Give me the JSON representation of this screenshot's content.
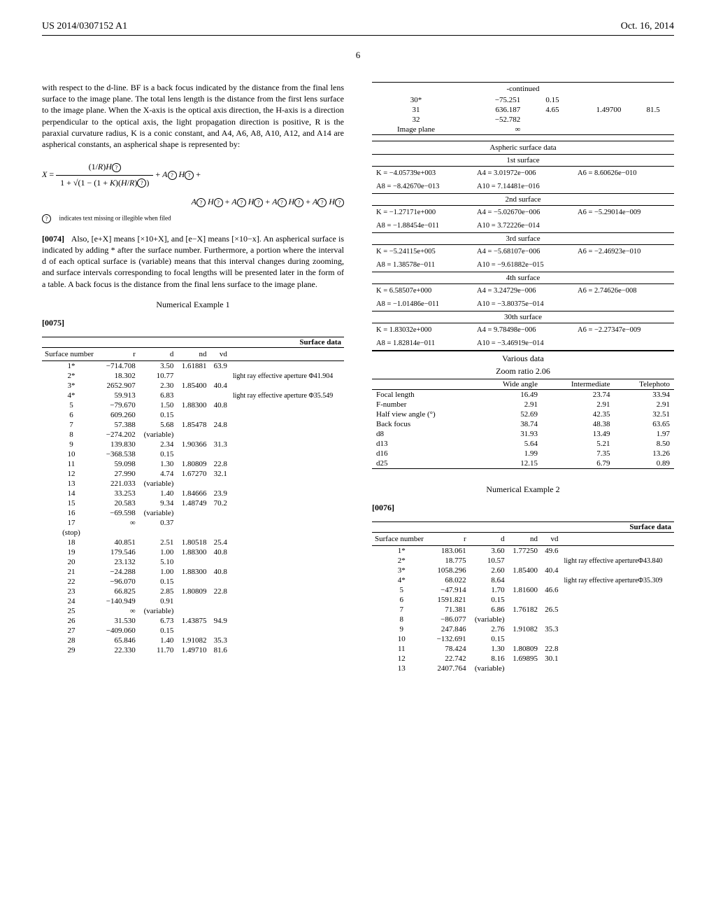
{
  "header": {
    "pub_no": "US 2014/0307152 A1",
    "pub_date": "Oct. 16, 2014"
  },
  "page_number": "6",
  "para1": "with respect to the d-line. BF is a back focus indicated by the distance from the final lens surface to the image plane. The total lens length is the distance from the first lens surface to the image plane. When the X-axis is the optical axis direction, the H-axis is a direction perpendicular to the optical axis, the light propagation direction is positive, R is the paraxial curvature radius, K is a conic constant, and A4, A6, A8, A10, A12, and A14 are aspherical constants, an aspherical shape is represented by:",
  "formula_main": "X = (1/R)H⃝ / (1 + √(1 − (1 + K)(H/R)⃝)) + A⃝ H⃝ +",
  "formula_cont": "A⃝ H⃝ + A⃝ H⃝ + A⃝ H⃝ + A⃝ H⃝",
  "formula_note": "⃝ indicates text missing or illegible when filed",
  "para2_num": "[0074]",
  "para2": "Also, [e+X] means [×10+X], and [e−X] means [×10−x]. An aspherical surface is indicated by adding * after the surface number. Furthermore, a portion where the interval d of each optical surface is (variable) means that this interval changes during zooming, and surface intervals corresponding to focal lengths will be presented later in the form of a table. A back focus is the distance from the final lens surface to the image plane.",
  "example1_title": "Numerical Example 1",
  "para3_num": "[0075]",
  "surface_title": "Surface data",
  "surface_header": [
    "Surface number",
    "r",
    "d",
    "nd",
    "vd",
    ""
  ],
  "surface_rows1": [
    [
      "1*",
      "−714.708",
      "3.50",
      "1.61881",
      "63.9",
      ""
    ],
    [
      "2*",
      "18.302",
      "10.77",
      "",
      "",
      "light ray effective aperture Φ41.904"
    ],
    [
      "3*",
      "2652.907",
      "2.30",
      "1.85400",
      "40.4",
      ""
    ],
    [
      "4*",
      "59.913",
      "6.83",
      "",
      "",
      "light ray effective aperture Φ35.549"
    ],
    [
      "5",
      "−79.670",
      "1.50",
      "1.88300",
      "40.8",
      ""
    ],
    [
      "6",
      "609.260",
      "0.15",
      "",
      "",
      ""
    ],
    [
      "7",
      "57.388",
      "5.68",
      "1.85478",
      "24.8",
      ""
    ],
    [
      "8",
      "−274.202",
      "(variable)",
      "",
      "",
      ""
    ],
    [
      "9",
      "139.830",
      "2.34",
      "1.90366",
      "31.3",
      ""
    ],
    [
      "10",
      "−368.538",
      "0.15",
      "",
      "",
      ""
    ],
    [
      "11",
      "59.098",
      "1.30",
      "1.80809",
      "22.8",
      ""
    ],
    [
      "12",
      "27.990",
      "4.74",
      "1.67270",
      "32.1",
      ""
    ],
    [
      "13",
      "221.033",
      "(variable)",
      "",
      "",
      ""
    ],
    [
      "14",
      "33.253",
      "1.40",
      "1.84666",
      "23.9",
      ""
    ],
    [
      "15",
      "20.583",
      "9.34",
      "1.48749",
      "70.2",
      ""
    ],
    [
      "16",
      "−69.598",
      "(variable)",
      "",
      "",
      ""
    ],
    [
      "17",
      "∞",
      "0.37",
      "",
      "",
      ""
    ],
    [
      "(stop)",
      "",
      "",
      "",
      "",
      ""
    ],
    [
      "18",
      "40.851",
      "2.51",
      "1.80518",
      "25.4",
      ""
    ],
    [
      "19",
      "179.546",
      "1.00",
      "1.88300",
      "40.8",
      ""
    ],
    [
      "20",
      "23.132",
      "5.10",
      "",
      "",
      ""
    ],
    [
      "21",
      "−24.288",
      "1.00",
      "1.88300",
      "40.8",
      ""
    ],
    [
      "22",
      "−96.070",
      "0.15",
      "",
      "",
      ""
    ],
    [
      "23",
      "66.825",
      "2.85",
      "1.80809",
      "22.8",
      ""
    ],
    [
      "24",
      "−140.949",
      "0.91",
      "",
      "",
      ""
    ],
    [
      "25",
      "∞",
      "(variable)",
      "",
      "",
      ""
    ],
    [
      "26",
      "31.530",
      "6.73",
      "1.43875",
      "94.9",
      ""
    ],
    [
      "27",
      "−409.060",
      "0.15",
      "",
      "",
      ""
    ],
    [
      "28",
      "65.846",
      "1.40",
      "1.91082",
      "35.3",
      ""
    ],
    [
      "29",
      "22.330",
      "11.70",
      "1.49710",
      "81.6",
      ""
    ]
  ],
  "continued_label": "-continued",
  "surface_rows_cont": [
    [
      "30*",
      "−75.251",
      "0.15",
      "",
      "",
      ""
    ],
    [
      "31",
      "636.187",
      "4.65",
      "1.49700",
      "81.5",
      ""
    ],
    [
      "32",
      "−52.782",
      "",
      "",
      "",
      ""
    ],
    [
      "Image plane",
      "∞",
      "",
      "",
      "",
      ""
    ]
  ],
  "aspheric_title": "Aspheric surface data",
  "aspheric_surfaces": [
    {
      "name": "1st surface",
      "rows": [
        [
          "K = −4.05739e+003",
          "A4 = 3.01972e−006",
          "A6 = 8.60626e−010"
        ],
        [
          "A8 = −8.42670e−013",
          "A10 = 7.14481e−016",
          ""
        ]
      ]
    },
    {
      "name": "2nd surface",
      "rows": [
        [
          "K = −1.27171e+000",
          "A4 = −5.02670e−006",
          "A6 = −5.29014e−009"
        ],
        [
          "A8 = −1.88454e−011",
          "A10 = 3.72226e−014",
          ""
        ]
      ]
    },
    {
      "name": "3rd surface",
      "rows": [
        [
          "K = −5.24115e+005",
          "A4 = −5.68107e−006",
          "A6 = −2.46923e−010"
        ],
        [
          "A8 = 1.38578e−011",
          "A10 = −9.61882e−015",
          ""
        ]
      ]
    },
    {
      "name": "4th surface",
      "rows": [
        [
          "K = 6.58507e+000",
          "A4 = 3.24729e−006",
          "A6 = 2.74626e−008"
        ],
        [
          "A8 = −1.01486e−011",
          "A10 = −3.80375e−014",
          ""
        ]
      ]
    },
    {
      "name": "30th surface",
      "rows": [
        [
          "K = 1.83032e+000",
          "A4 = 9.78498e−006",
          "A6 = −2.27347e−009"
        ],
        [
          "A8 = 1.82814e−011",
          "A10 = −3.46919e−014",
          ""
        ]
      ]
    }
  ],
  "various_title": "Various data",
  "various_sub": "Zoom ratio 2.06",
  "various_header": [
    "",
    "Wide angle",
    "Intermediate",
    "Telephoto"
  ],
  "various_rows": [
    [
      "Focal length",
      "16.49",
      "23.74",
      "33.94"
    ],
    [
      "F-number",
      "2.91",
      "2.91",
      "2.91"
    ],
    [
      "Half view angle (°)",
      "52.69",
      "42.35",
      "32.51"
    ],
    [
      "Back focus",
      "38.74",
      "48.38",
      "63.65"
    ],
    [
      "d8",
      "31.93",
      "13.49",
      "1.97"
    ],
    [
      "d13",
      "5.64",
      "5.21",
      "8.50"
    ],
    [
      "d16",
      "1.99",
      "7.35",
      "13.26"
    ],
    [
      "d25",
      "12.15",
      "6.79",
      "0.89"
    ]
  ],
  "example2_title": "Numerical Example 2",
  "para4_num": "[0076]",
  "surface_rows2": [
    [
      "1*",
      "183.061",
      "3.60",
      "1.77250",
      "49.6",
      ""
    ],
    [
      "2*",
      "18.775",
      "10.57",
      "",
      "",
      "light ray effective apertureΦ43.840"
    ],
    [
      "3*",
      "1058.296",
      "2.60",
      "1.85400",
      "40.4",
      ""
    ],
    [
      "4*",
      "68.022",
      "8.64",
      "",
      "",
      "light ray effective apertureΦ35.309"
    ],
    [
      "5",
      "−47.914",
      "1.70",
      "1.81600",
      "46.6",
      ""
    ],
    [
      "6",
      "1591.821",
      "0.15",
      "",
      "",
      ""
    ],
    [
      "7",
      "71.381",
      "6.86",
      "1.76182",
      "26.5",
      ""
    ],
    [
      "8",
      "−86.077",
      "(variable)",
      "",
      "",
      ""
    ],
    [
      "9",
      "247.846",
      "2.76",
      "1.91082",
      "35.3",
      ""
    ],
    [
      "10",
      "−132.691",
      "0.15",
      "",
      "",
      ""
    ],
    [
      "11",
      "78.424",
      "1.30",
      "1.80809",
      "22.8",
      ""
    ],
    [
      "12",
      "22.742",
      "8.16",
      "1.69895",
      "30.1",
      ""
    ],
    [
      "13",
      "2407.764",
      "(variable)",
      "",
      "",
      ""
    ]
  ]
}
